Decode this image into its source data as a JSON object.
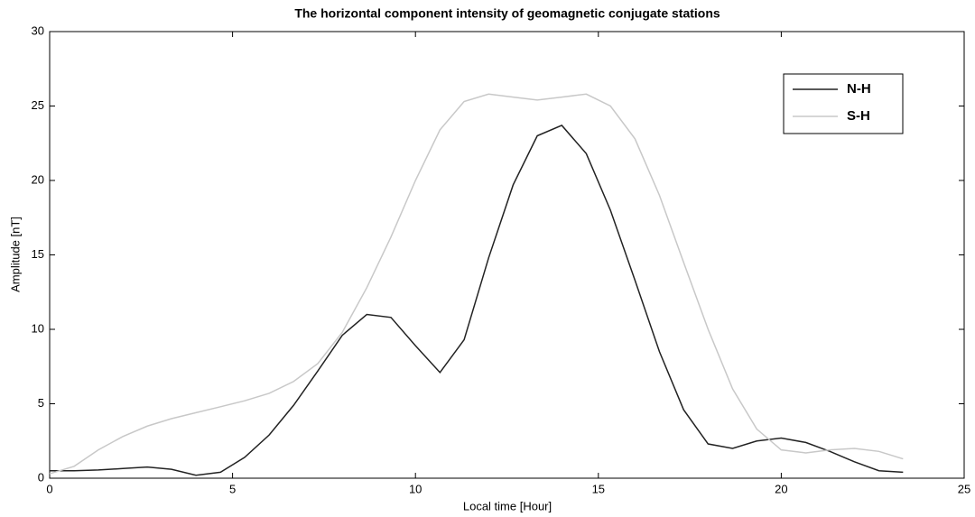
{
  "chart_data": {
    "type": "line",
    "title": "The horizontal component intensity of geomagnetic conjugate stations",
    "xlabel": "Local time [Hour]",
    "ylabel": "Amplitude [nT]",
    "x": [
      0,
      0.67,
      1.33,
      2,
      2.67,
      3.33,
      4,
      4.67,
      5.33,
      6,
      6.67,
      7.33,
      8,
      8.67,
      9.33,
      10,
      10.67,
      11.33,
      12,
      12.67,
      13.33,
      14,
      14.67,
      15.33,
      16,
      16.67,
      17.33,
      18,
      18.67,
      19.33,
      20,
      20.67,
      21.33,
      22,
      22.67,
      23.33
    ],
    "series": [
      {
        "name": "N-H",
        "color": "#222222",
        "values": [
          0.5,
          0.5,
          0.55,
          0.65,
          0.75,
          0.6,
          0.2,
          0.4,
          1.4,
          2.9,
          4.9,
          7.2,
          9.6,
          11,
          10.8,
          8.9,
          7.1,
          9.3,
          14.8,
          19.7,
          23,
          23.7,
          21.8,
          18,
          13.3,
          8.5,
          4.6,
          2.3,
          2.0,
          2.5,
          2.7,
          2.4,
          1.8,
          1.1,
          0.5,
          0.4
        ]
      },
      {
        "name": "S-H",
        "color": "#c8c8c8",
        "values": [
          0.3,
          0.8,
          1.9,
          2.8,
          3.5,
          4.0,
          4.4,
          4.8,
          5.2,
          5.7,
          6.5,
          7.7,
          9.8,
          12.8,
          16.2,
          20,
          23.4,
          25.3,
          25.8,
          25.6,
          25.4,
          25.6,
          25.8,
          25,
          22.8,
          19,
          14.5,
          10,
          6,
          3.3,
          1.9,
          1.7,
          1.9,
          2.0,
          1.8,
          1.3
        ]
      }
    ],
    "xlim": [
      0,
      25
    ],
    "xticks": [
      0,
      5,
      10,
      15,
      20,
      25
    ],
    "ylim": [
      0,
      30
    ],
    "yticks": [
      0,
      5,
      10,
      15,
      20,
      25,
      30
    ],
    "legend": "upper right"
  }
}
